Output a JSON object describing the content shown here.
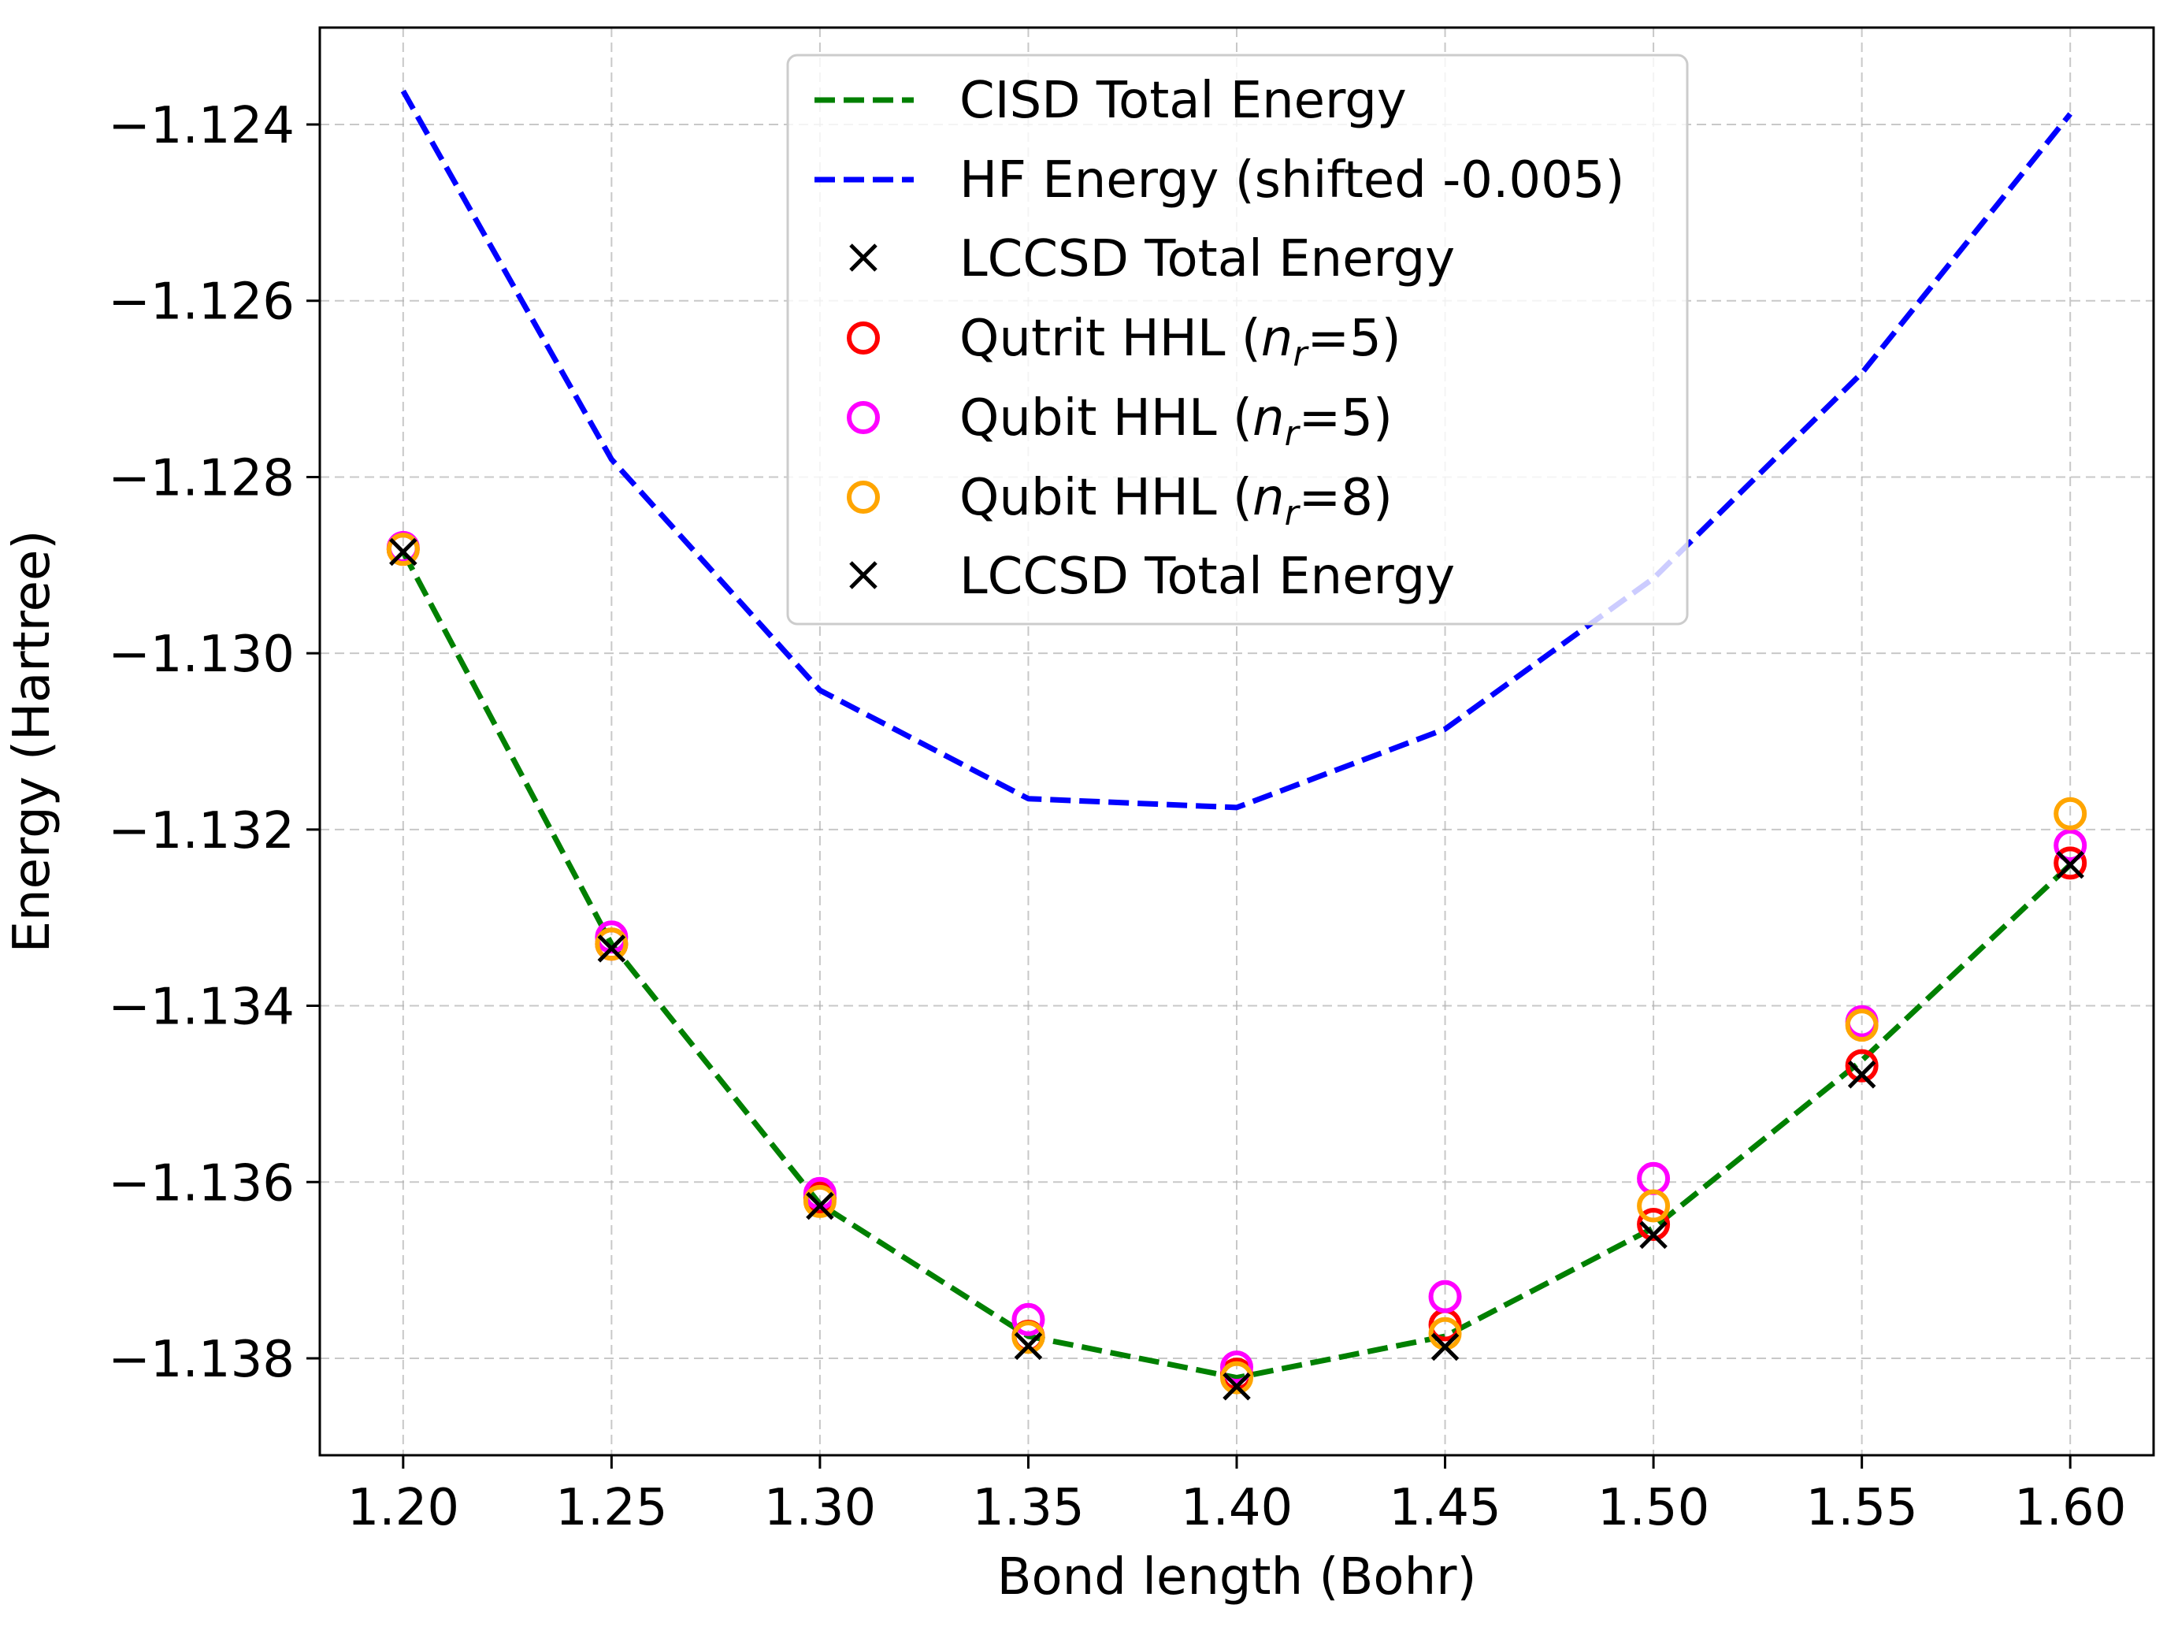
{
  "chart_data": {
    "type": "line",
    "title": "",
    "xlabel": "Bond length (Bohr)",
    "ylabel": "Energy (Hartree)",
    "xlim": [
      1.18,
      1.62
    ],
    "ylim": [
      -1.1391,
      -1.1229
    ],
    "xticks": [
      1.2,
      1.25,
      1.3,
      1.35,
      1.4,
      1.45,
      1.5,
      1.55,
      1.6
    ],
    "xtick_labels": [
      "1.20",
      "1.25",
      "1.30",
      "1.35",
      "1.40",
      "1.45",
      "1.50",
      "1.55",
      "1.60"
    ],
    "yticks": [
      -1.124,
      -1.126,
      -1.128,
      -1.13,
      -1.132,
      -1.134,
      -1.136,
      -1.138
    ],
    "ytick_labels": [
      "−1.124",
      "−1.126",
      "−1.128",
      "−1.130",
      "−1.132",
      "−1.134",
      "−1.136",
      "−1.138"
    ],
    "grid": true,
    "legend_position": "top-center",
    "x": [
      1.2,
      1.25,
      1.3,
      1.35,
      1.4,
      1.45,
      1.5,
      1.55,
      1.6
    ],
    "series": [
      {
        "name": "CISD Total Energy",
        "kind": "line",
        "color": "#008000",
        "values": [
          -1.12885,
          -1.1333,
          -1.13625,
          -1.13775,
          -1.13822,
          -1.13775,
          -1.13652,
          -1.13462,
          -1.1324
        ]
      },
      {
        "name": "HF Energy (shifted -0.005)",
        "kind": "line",
        "color": "#0000ff",
        "values": [
          -1.12362,
          -1.1278,
          -1.13042,
          -1.13165,
          -1.13175,
          -1.13086,
          -1.12915,
          -1.12682,
          -1.12388
        ]
      },
      {
        "name": "LCCSD Total Energy",
        "kind": "x-marker",
        "color": "#000000",
        "values": [
          -1.12885,
          -1.13335,
          -1.13627,
          -1.13786,
          -1.13832,
          -1.13787,
          -1.1366,
          -1.13478,
          -1.1324
        ]
      },
      {
        "name": "Qutrit HHL (n_r=5)",
        "label_main": "Qutrit HHL (",
        "label_sub": "r",
        "label_end": "=5)",
        "kind": "circle",
        "color": "#ff0000",
        "values": [
          -1.12882,
          -1.1333,
          -1.13618,
          -1.13775,
          -1.13818,
          -1.13762,
          -1.13648,
          -1.13468,
          -1.13238
        ]
      },
      {
        "name": "Qubit HHL (n_r=5)",
        "label_main": "Qubit HHL (",
        "label_sub": "r",
        "label_end": "=5)",
        "kind": "circle",
        "color": "#ff00ff",
        "values": [
          -1.1288,
          -1.13322,
          -1.13613,
          -1.13756,
          -1.1381,
          -1.1373,
          -1.13596,
          -1.13418,
          -1.13218
        ]
      },
      {
        "name": "Qubit HHL (n_r=8)",
        "label_main": "Qubit HHL (",
        "label_sub": "r",
        "label_end": "=8)",
        "kind": "circle",
        "color": "#ffa500",
        "values": [
          -1.12882,
          -1.1333,
          -1.13622,
          -1.13776,
          -1.13822,
          -1.13772,
          -1.13627,
          -1.13422,
          -1.13182
        ]
      }
    ],
    "legend": [
      "CISD Total Energy",
      "HF Energy (shifted -0.005)",
      "LCCSD Total Energy",
      "Qutrit HHL (n_r=5)",
      "Qubit HHL (n_r=5)",
      "Qubit HHL (n_r=8)",
      "LCCSD Total Energy"
    ]
  }
}
